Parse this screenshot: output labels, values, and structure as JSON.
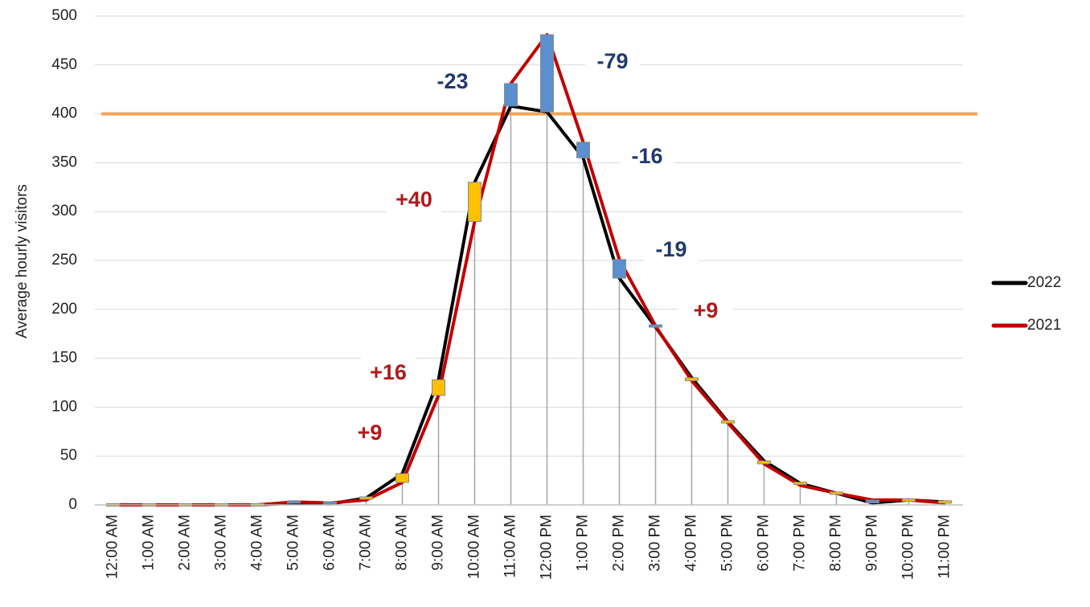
{
  "chart_data": {
    "type": "line",
    "y_label": "Average hourly visitors",
    "categories": [
      "12:00 AM",
      "1:00 AM",
      "2:00 AM",
      "3:00 AM",
      "4:00 AM",
      "5:00 AM",
      "6:00 AM",
      "7:00 AM",
      "8:00 AM",
      "9:00 AM",
      "10:00 AM",
      "11:00 AM",
      "12:00 PM",
      "1:00 PM",
      "2:00 PM",
      "3:00 PM",
      "4:00 PM",
      "5:00 PM",
      "6:00 PM",
      "7:00 PM",
      "8:00 PM",
      "9:00 PM",
      "10:00 PM",
      "11:00 PM"
    ],
    "series": [
      {
        "name": "2022",
        "color": "#000000",
        "values": [
          0,
          0,
          0,
          0,
          0,
          2,
          1,
          7,
          32,
          128,
          330,
          408,
          402,
          355,
          232,
          182,
          130,
          85,
          45,
          22,
          12,
          2,
          5,
          3
        ]
      },
      {
        "name": "2021",
        "color": "#c00000",
        "values": [
          0,
          0,
          0,
          0,
          0,
          3,
          2,
          5,
          23,
          112,
          290,
          431,
          481,
          371,
          251,
          183,
          127,
          84,
          42,
          20,
          12,
          5,
          5,
          2
        ]
      }
    ],
    "up_color": "#ffc000",
    "down_color": "#5b8fd0",
    "reference_line": {
      "value": 400,
      "color": "#f4a35a"
    },
    "annotations": [
      {
        "text": "-23",
        "color": "#1f3a6e"
      },
      {
        "text": "-79",
        "color": "#1f3a6e"
      },
      {
        "text": "-16",
        "color": "#1f3a6e"
      },
      {
        "text": "-19",
        "color": "#1f3a6e"
      },
      {
        "text": "+9",
        "color": "#b01a1a"
      },
      {
        "text": "+40",
        "color": "#b01a1a"
      },
      {
        "text": "+16",
        "color": "#b01a1a"
      },
      {
        "text": "+9",
        "color": "#b01a1a"
      }
    ],
    "ylim": [
      0,
      500
    ],
    "yticks": [
      0,
      50,
      100,
      150,
      200,
      250,
      300,
      350,
      400,
      450,
      500
    ],
    "grid": true,
    "legend": "right"
  }
}
